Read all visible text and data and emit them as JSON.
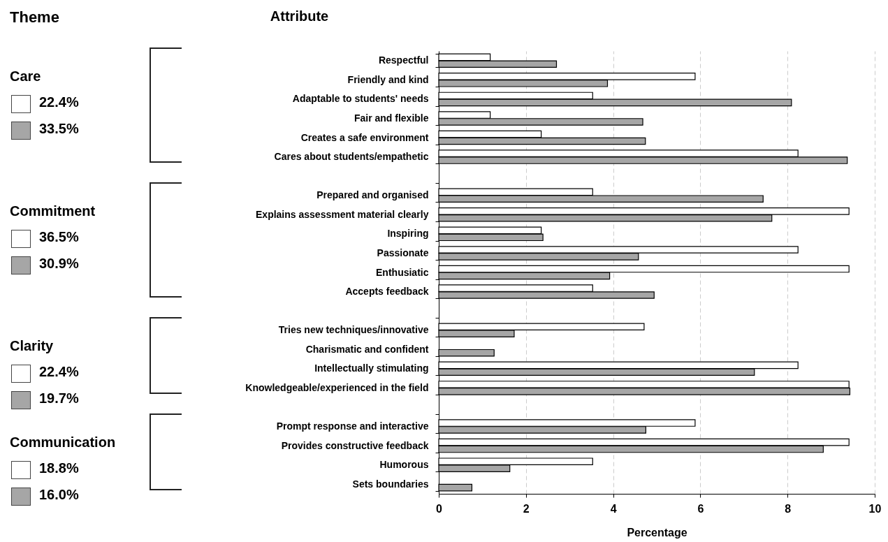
{
  "chart_data": {
    "type": "bar",
    "orientation": "horizontal",
    "ylabel": "Attribute",
    "xlabel": "Percentage",
    "categories": [
      "Respectful",
      "Friendly and kind",
      "Adaptable to students' needs",
      "Fair and flexible",
      "Creates a safe environment",
      "Cares about students/empathetic",
      null,
      "Prepared and organised",
      "Explains assessment material clearly",
      "Inspiring",
      "Passionate",
      "Enthusiatic",
      "Accepts feedback",
      null,
      "Tries new techniques/innovative",
      "Charismatic and confident",
      "Intellectually stimulating",
      "Knowledgeable/experienced in the field",
      null,
      "Prompt response and interactive",
      "Provides constructive feedback",
      "Humorous",
      "Sets boundaries"
    ],
    "series": [
      {
        "color": "#ffffff",
        "values": [
          1.18,
          5.88,
          3.53,
          1.18,
          2.35,
          8.24,
          null,
          3.53,
          9.41,
          2.35,
          8.24,
          9.41,
          3.53,
          null,
          4.71,
          null,
          8.24,
          9.41,
          null,
          5.88,
          9.41,
          3.53,
          null
        ]
      },
      {
        "color": "#a6a6a6",
        "values": [
          2.7,
          3.87,
          8.09,
          4.68,
          4.74,
          9.37,
          null,
          7.44,
          7.64,
          2.39,
          4.58,
          3.92,
          4.94,
          null,
          1.73,
          1.27,
          7.24,
          9.43,
          null,
          4.75,
          8.82,
          1.63,
          0.76
        ]
      }
    ],
    "xlim": [
      0,
      10
    ],
    "xticks": [
      0,
      2,
      4,
      6,
      8,
      10
    ],
    "grid": "x",
    "legend": false,
    "annotations": [
      "Theme",
      "Care",
      "22.4%",
      "33.5%",
      "Commitment",
      "36.5%",
      "30.9%",
      "Clarity",
      "22.4%",
      "19.7%",
      "Communication",
      "18.8%",
      "16.0%"
    ]
  }
}
